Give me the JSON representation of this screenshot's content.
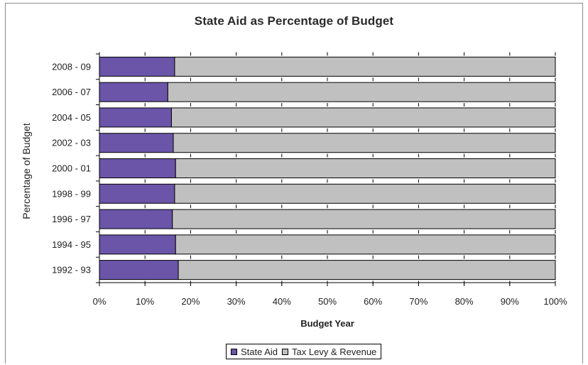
{
  "chart_data": {
    "type": "bar",
    "orientation": "horizontal",
    "stacked": "percent",
    "title": "State Aid as Percentage of Budget",
    "xlabel": "Budget Year",
    "ylabel": "Percentage of  Budget",
    "categories": [
      "2008 - 09",
      "2006 - 07",
      "2004 - 05",
      "2002 - 03",
      "2000 - 01",
      "1998 - 99",
      "1996 - 97",
      "1994 - 95",
      "1992 - 93"
    ],
    "series": [
      {
        "name": "State Aid",
        "color": "#6a55a8",
        "values": [
          16.5,
          15,
          15.8,
          16.2,
          16.7,
          16.5,
          16,
          16.7,
          17.3
        ]
      },
      {
        "name": "Tax Levy & Revenue",
        "color": "#c0c0c0",
        "values": [
          83.5,
          85,
          84.2,
          83.8,
          83.3,
          83.5,
          84,
          83.3,
          82.7
        ]
      }
    ],
    "xlim": [
      0,
      100
    ],
    "xticks": [
      "0%",
      "10%",
      "20%",
      "30%",
      "40%",
      "50%",
      "60%",
      "70%",
      "80%",
      "90%",
      "100%"
    ],
    "grid": false,
    "legend_position": "bottom"
  }
}
